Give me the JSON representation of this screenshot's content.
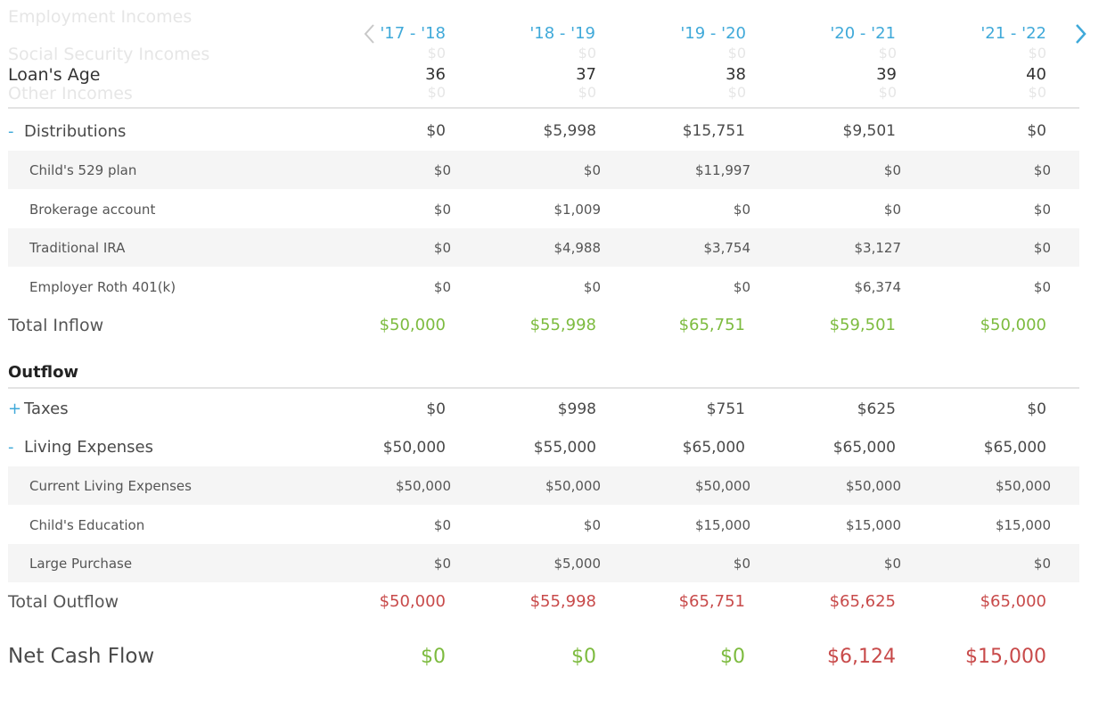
{
  "colors": {
    "accent": "#3fa9d9",
    "positive": "#7dbb3f",
    "negative": "#c84a4a",
    "row_shade": "#f5f5f5"
  },
  "ghost_rows": [
    {
      "label": "Employment Incomes"
    },
    {
      "label": "Social Security Incomes",
      "values": [
        "$0",
        "$0",
        "$0",
        "$0",
        "$0"
      ]
    },
    {
      "label": "Other Incomes",
      "values": [
        "$0",
        "$0",
        "$0",
        "$0",
        "$0"
      ]
    }
  ],
  "header": {
    "prev_icon": "chevron-left-icon",
    "next_icon": "chevron-right-icon",
    "years": [
      "'17 - '18",
      "'18 - '19",
      "'19 - '20",
      "'20 - '21",
      "'21 - '22"
    ],
    "age_label": "Loan's Age",
    "ages": [
      "36",
      "37",
      "38",
      "39",
      "40"
    ]
  },
  "inflow": {
    "distributions": {
      "toggle": "-",
      "label": "Distributions",
      "values": [
        "$0",
        "$5,998",
        "$15,751",
        "$9,501",
        "$0"
      ],
      "items": [
        {
          "label": "Child's 529 plan",
          "values": [
            "$0",
            "$0",
            "$11,997",
            "$0",
            "$0"
          ]
        },
        {
          "label": "Brokerage account",
          "values": [
            "$0",
            "$1,009",
            "$0",
            "$0",
            "$0"
          ]
        },
        {
          "label": "Traditional IRA",
          "values": [
            "$0",
            "$4,988",
            "$3,754",
            "$3,127",
            "$0"
          ]
        },
        {
          "label": "Employer Roth 401(k)",
          "values": [
            "$0",
            "$0",
            "$0",
            "$6,374",
            "$0"
          ]
        }
      ]
    },
    "total": {
      "label": "Total Inflow",
      "values": [
        "$50,000",
        "$55,998",
        "$65,751",
        "$59,501",
        "$50,000"
      ]
    }
  },
  "outflow": {
    "title": "Outflow",
    "taxes": {
      "toggle": "+",
      "label": "Taxes",
      "values": [
        "$0",
        "$998",
        "$751",
        "$625",
        "$0"
      ]
    },
    "living": {
      "toggle": "-",
      "label": "Living Expenses",
      "values": [
        "$50,000",
        "$55,000",
        "$65,000",
        "$65,000",
        "$65,000"
      ],
      "items": [
        {
          "label": "Current Living Expenses",
          "values": [
            "$50,000",
            "$50,000",
            "$50,000",
            "$50,000",
            "$50,000"
          ]
        },
        {
          "label": "Child's Education",
          "values": [
            "$0",
            "$0",
            "$15,000",
            "$15,000",
            "$15,000"
          ]
        },
        {
          "label": "Large Purchase",
          "values": [
            "$0",
            "$5,000",
            "$0",
            "$0",
            "$0"
          ]
        }
      ]
    },
    "total": {
      "label": "Total Outflow",
      "values": [
        "$50,000",
        "$55,998",
        "$65,751",
        "$65,625",
        "$65,000"
      ]
    }
  },
  "net": {
    "label": "Net Cash Flow",
    "values": [
      "$0",
      "$0",
      "$0",
      "$6,124",
      "$15,000"
    ],
    "tones": [
      "positive",
      "positive",
      "positive",
      "negative",
      "negative"
    ]
  }
}
